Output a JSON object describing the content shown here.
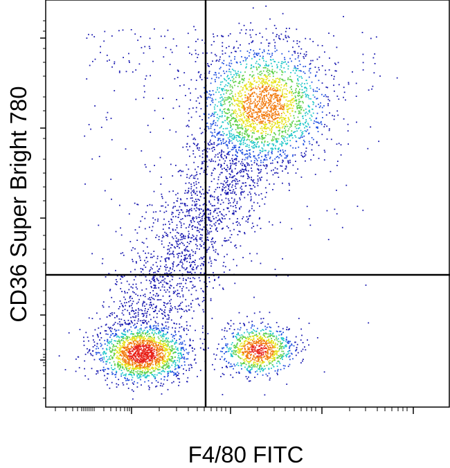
{
  "chart_data": {
    "type": "scatter",
    "x_label": "F4/80 FITC",
    "y_label": "CD36 Super Bright 780"
  }
}
